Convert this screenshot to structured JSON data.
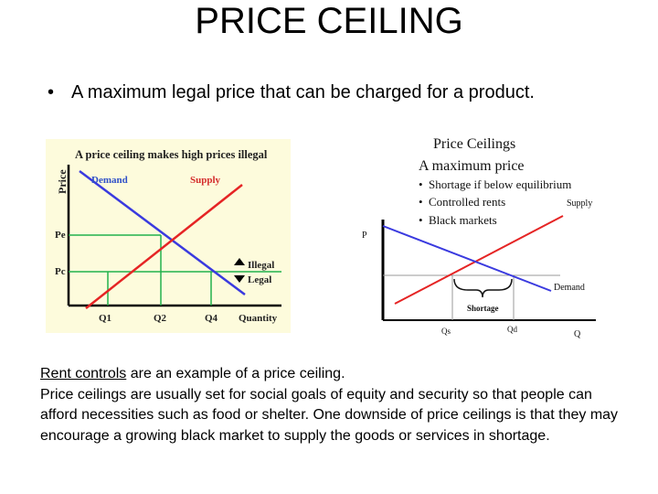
{
  "slide": {
    "title": "PRICE CEILING",
    "bullet": "A maximum legal price that can be charged for a product."
  },
  "figure_left": {
    "heading": "A price ceiling makes high prices illegal",
    "y_axis": "Price",
    "x_axis": "Quantity",
    "demand_label": "Demand",
    "supply_label": "Supply",
    "price_labels": [
      "Pe",
      "Pc"
    ],
    "quantity_labels": [
      "Q1",
      "Q2",
      "Q4"
    ],
    "illegal_label": "Illegal",
    "legal_label": "Legal",
    "colors": {
      "background": "#fdfbdc",
      "demand": "#3a3adf",
      "supply": "#e52424",
      "guides": "#22b14c",
      "label_red": "#d42a2a",
      "label_blue": "#3050c8"
    }
  },
  "figure_right": {
    "title": "Price Ceilings",
    "subtitle": "A maximum price",
    "bullets": [
      "Shortage if below equilibrium",
      "Controlled rents",
      "Black markets"
    ],
    "y_axis": "P",
    "x_axis": "Q",
    "supply_label": "Supply",
    "demand_label": "Demand",
    "shortage_label": "Shortage",
    "quantity_labels": [
      "Qs",
      "Qd"
    ],
    "colors": {
      "supply": "#e52424",
      "demand": "#3a3adf"
    }
  },
  "body": {
    "line1_link": "Rent controls",
    "line1_rest": " are an example of a price ceiling.",
    "paragraph": "Price ceilings are usually set for social goals of equity and security so that people can afford necessities such as food or shelter. One downside of price ceilings is that they may encourage a growing black market to supply the goods or services in shortage."
  }
}
